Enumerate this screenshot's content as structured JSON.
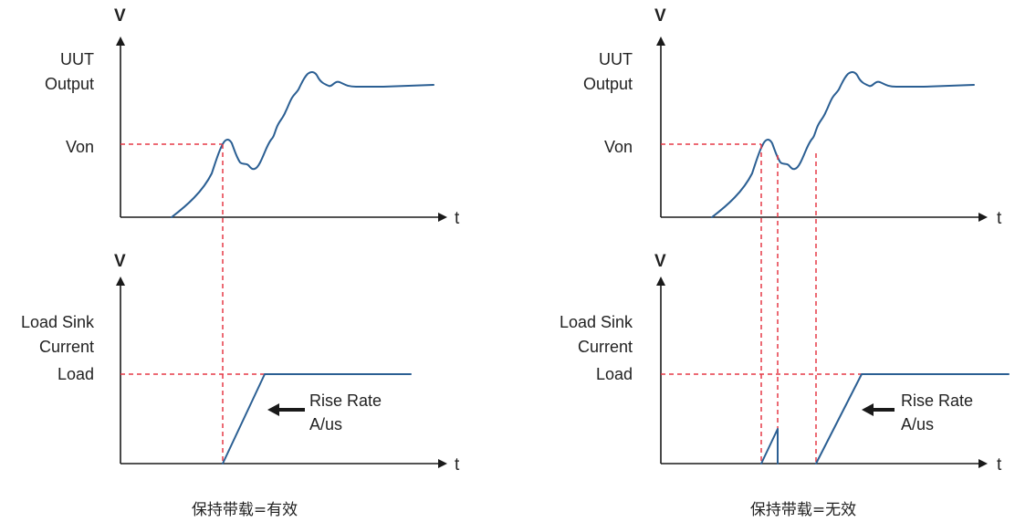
{
  "axis_labels": {
    "v": "V",
    "t": "t"
  },
  "left": {
    "top_ylabel_line1": "UUT",
    "top_ylabel_line2": "Output",
    "von_label": "Von",
    "bottom_ylabel_line1": "Load Sink",
    "bottom_ylabel_line2": "Current",
    "load_label": "Load",
    "rise_rate_line1": "Rise Rate",
    "rise_rate_line2": "A/us",
    "caption": "保持带载=有效"
  },
  "right": {
    "top_ylabel_line1": "UUT",
    "top_ylabel_line2": "Output",
    "von_label": "Von",
    "bottom_ylabel_line1": "Load Sink",
    "bottom_ylabel_line2": "Current",
    "load_label": "Load",
    "rise_rate_line1": "Rise Rate",
    "rise_rate_line2": "A/us",
    "caption": "保持带载=无效"
  },
  "colors": {
    "curve": "#2b5f93",
    "dashed_guide": "#e63946",
    "axis": "#1a1a1a"
  }
}
